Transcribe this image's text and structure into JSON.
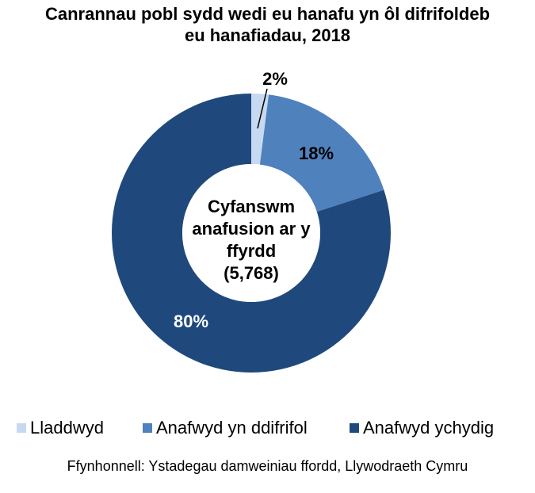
{
  "title": {
    "line1": "Canrannau pobl sydd wedi eu hanafu yn ôl difrifoldeb",
    "line2": "eu hanafiadau, 2018"
  },
  "center_label": {
    "line1": "Cyfanswm",
    "line2": "anafusion ar y",
    "line3": "ffyrdd",
    "line4": "(5,768)"
  },
  "slices": [
    {
      "name": "Lladdwyd",
      "value": 2,
      "label": "2%",
      "color": "#C6D9F1",
      "label_color": "#000000"
    },
    {
      "name": "Anafwyd yn ddifrifol",
      "value": 18,
      "label": "18%",
      "color": "#4F81BD",
      "label_color": "#000000"
    },
    {
      "name": "Anafwyd ychydig",
      "value": 80,
      "label": "80%",
      "color": "#1F497D",
      "label_color": "#FFFFFF"
    }
  ],
  "legend": {
    "items": [
      {
        "label": "Lladdwyd",
        "color": "#C6D9F1"
      },
      {
        "label": "Anafwyd yn ddifrifol",
        "color": "#4F81BD"
      },
      {
        "label": "Anafwyd ychydig",
        "color": "#1F497D"
      }
    ]
  },
  "source": "Ffynhonnell: Ystadegau damweiniau ffordd, Llywodraeth Cymru",
  "chart_data": {
    "type": "pie",
    "subtype": "donut",
    "title": "Canrannau pobl sydd wedi eu hanafu yn ôl difrifoldeb eu hanafiadau, 2018",
    "categories": [
      "Lladdwyd",
      "Anafwyd yn ddifrifol",
      "Anafwyd ychydig"
    ],
    "values": [
      2,
      18,
      80
    ],
    "unit": "%",
    "data_labels": [
      "2%",
      "18%",
      "80%"
    ],
    "colors": [
      "#C6D9F1",
      "#4F81BD",
      "#1F497D"
    ],
    "center_text": "Cyfanswm anafusion ar y ffyrdd (5,768)",
    "total": 5768,
    "legend_position": "bottom",
    "source": "Ffynhonnell: Ystadegau damweiniau ffordd, Llywodraeth Cymru"
  }
}
